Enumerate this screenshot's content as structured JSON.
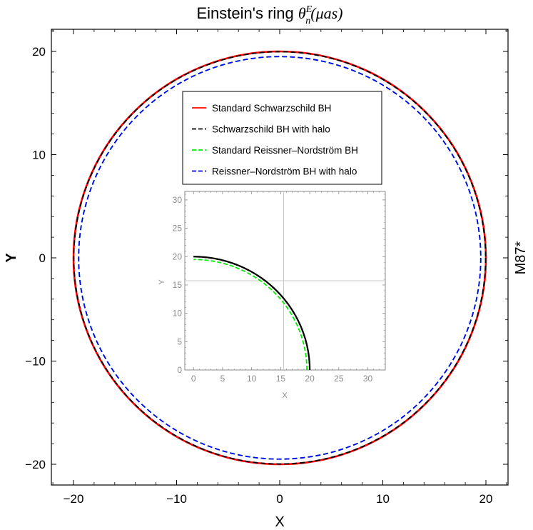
{
  "chart_data": [
    {
      "type": "line",
      "title_text": "Einstein's ring ",
      "title_math": {
        "base": "θ",
        "sub": "n",
        "sup": "E",
        "unit": "(μas)"
      },
      "xlabel": "X",
      "ylabel": "Y",
      "side_label": "M87*",
      "xlim": [
        -22.3,
        22.3
      ],
      "ylim": [
        -22.3,
        22.3
      ],
      "xticks": [
        -20,
        -10,
        0,
        10,
        20
      ],
      "yticks": [
        -20,
        -10,
        0,
        10,
        20
      ],
      "xtick_labels": [
        "−20",
        "−10",
        "0",
        "10",
        "20"
      ],
      "ytick_labels": [
        "−20",
        "−10",
        "0",
        "10",
        "20"
      ],
      "grid": false,
      "legend_position": "top-center",
      "series": [
        {
          "name": "Standard Schwarzschild BH",
          "shape": "circle",
          "radius": 20.0,
          "color": "#ff0000",
          "dash": "solid"
        },
        {
          "name": "Schwarzschild BH with halo",
          "shape": "circle",
          "radius": 19.97,
          "color": "#000000",
          "dash": "dashed"
        },
        {
          "name": "Standard Reissner–Nordström BH",
          "shape": "circle",
          "radius": 19.5,
          "color": "#00ee00",
          "dash": "dashed"
        },
        {
          "name": "Reissner–Nordström BH with halo",
          "shape": "circle",
          "radius": 19.5,
          "color": "#0000ff",
          "dash": "dashed"
        }
      ]
    },
    {
      "type": "line",
      "inset": true,
      "xlabel": "X",
      "ylabel": "Y",
      "xlim": [
        -1.5,
        33
      ],
      "ylim": [
        0,
        31.5
      ],
      "xticks": [
        0,
        5,
        10,
        15,
        20,
        25,
        30
      ],
      "yticks": [
        0,
        5,
        10,
        15,
        20,
        25,
        30
      ],
      "xtick_labels": [
        "0",
        "5",
        "10",
        "15",
        "20",
        "25",
        "30"
      ],
      "ytick_labels": [
        "0",
        "5",
        "10",
        "15",
        "20",
        "25",
        "30"
      ],
      "reference_lines": {
        "x": 15.5,
        "y": 15.75
      },
      "series": [
        {
          "name": "Standard Schwarzschild BH",
          "shape": "quarter-arc",
          "radius": 20.0,
          "color": "#000000",
          "dash": "solid"
        },
        {
          "name": "Schwarzschild BH with halo",
          "shape": "quarter-arc",
          "radius": 19.97,
          "color": "#000000",
          "dash": "dashed"
        },
        {
          "name": "Standard Reissner–Nordström BH",
          "shape": "quarter-arc",
          "radius": 19.5,
          "color": "#00ee00",
          "dash": "dashed"
        }
      ]
    }
  ]
}
